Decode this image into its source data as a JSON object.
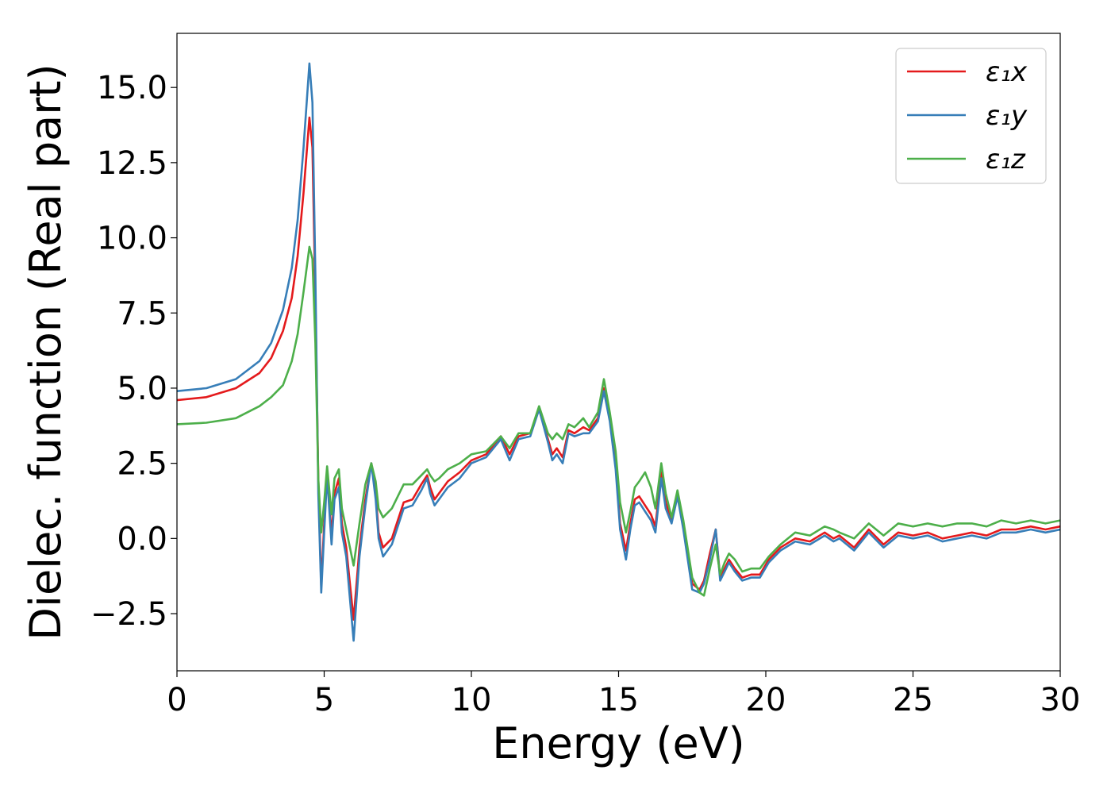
{
  "chart_data": {
    "type": "line",
    "xlabel": "Energy (eV)",
    "ylabel": "Dielec. function (Real part)",
    "xlim": [
      0,
      30
    ],
    "ylim": [
      -4.4,
      16.8
    ],
    "xticks": [
      0,
      5,
      10,
      15,
      20,
      25,
      30
    ],
    "xtick_labels": [
      "0",
      "5",
      "10",
      "15",
      "20",
      "25",
      "30"
    ],
    "yticks": [
      -2.5,
      0.0,
      2.5,
      5.0,
      7.5,
      10.0,
      12.5,
      15.0
    ],
    "ytick_labels": [
      "−2.5",
      "0.0",
      "2.5",
      "5.0",
      "7.5",
      "10.0",
      "12.5",
      "15.0"
    ],
    "grid": false,
    "legend_position": "top-right",
    "series": [
      {
        "name": "ε₁x",
        "color": "#e41a1c",
        "x": [
          0,
          1,
          2,
          2.8,
          3.2,
          3.6,
          3.9,
          4.1,
          4.3,
          4.5,
          4.6,
          4.7,
          4.8,
          4.9,
          5.0,
          5.1,
          5.25,
          5.35,
          5.5,
          5.6,
          5.75,
          6.0,
          6.2,
          6.4,
          6.6,
          6.75,
          6.85,
          7.0,
          7.3,
          7.7,
          8.0,
          8.3,
          8.5,
          8.6,
          8.75,
          8.9,
          9.2,
          9.6,
          10.0,
          10.5,
          11.0,
          11.3,
          11.6,
          12.0,
          12.3,
          12.6,
          12.75,
          12.9,
          13.1,
          13.3,
          13.5,
          13.8,
          14.0,
          14.3,
          14.5,
          14.7,
          14.9,
          15.05,
          15.25,
          15.4,
          15.55,
          15.7,
          15.9,
          16.1,
          16.25,
          16.45,
          16.6,
          16.8,
          17.0,
          17.2,
          17.5,
          17.75,
          17.9,
          18.1,
          18.3,
          18.45,
          18.6,
          18.75,
          18.95,
          19.2,
          19.5,
          19.8,
          20.1,
          20.5,
          21.0,
          21.5,
          22.0,
          22.3,
          22.5,
          23.0,
          23.5,
          24.0,
          24.5,
          25.0,
          25.5,
          26.0,
          26.5,
          27.0,
          27.5,
          28.0,
          28.5,
          29.0,
          29.5,
          30.0
        ],
        "y": [
          4.6,
          4.7,
          5.0,
          5.5,
          6.0,
          6.9,
          8.0,
          9.4,
          11.5,
          14.0,
          13.0,
          8.0,
          2.0,
          -1.6,
          0.5,
          2.2,
          0.1,
          1.5,
          2.0,
          0.5,
          -0.3,
          -2.7,
          -0.3,
          1.3,
          2.5,
          1.5,
          0.2,
          -0.3,
          0.0,
          1.2,
          1.3,
          1.8,
          2.1,
          1.7,
          1.3,
          1.5,
          1.9,
          2.2,
          2.6,
          2.8,
          3.4,
          2.8,
          3.4,
          3.5,
          4.3,
          3.3,
          2.8,
          3.0,
          2.7,
          3.6,
          3.5,
          3.7,
          3.6,
          4.0,
          5.0,
          4.0,
          2.5,
          0.5,
          -0.4,
          0.5,
          1.3,
          1.4,
          1.1,
          0.8,
          0.4,
          2.2,
          1.2,
          0.6,
          1.5,
          0.5,
          -1.5,
          -1.7,
          -1.4,
          -0.5,
          0.3,
          -1.3,
          -1.0,
          -0.7,
          -1.0,
          -1.3,
          -1.2,
          -1.2,
          -0.7,
          -0.3,
          0.0,
          -0.1,
          0.2,
          0.0,
          0.1,
          -0.3,
          0.3,
          -0.2,
          0.2,
          0.1,
          0.2,
          0.0,
          0.1,
          0.2,
          0.1,
          0.3,
          0.3,
          0.4,
          0.3,
          0.4
        ]
      },
      {
        "name": "ε₁y",
        "color": "#377eb8",
        "x": [
          0,
          1,
          2,
          2.8,
          3.2,
          3.6,
          3.9,
          4.1,
          4.3,
          4.5,
          4.6,
          4.7,
          4.8,
          4.9,
          5.0,
          5.1,
          5.25,
          5.35,
          5.5,
          5.6,
          5.75,
          6.0,
          6.2,
          6.4,
          6.6,
          6.75,
          6.85,
          7.0,
          7.3,
          7.7,
          8.0,
          8.3,
          8.5,
          8.6,
          8.75,
          8.9,
          9.2,
          9.6,
          10.0,
          10.5,
          11.0,
          11.3,
          11.6,
          12.0,
          12.3,
          12.6,
          12.75,
          12.9,
          13.1,
          13.3,
          13.5,
          13.8,
          14.0,
          14.3,
          14.5,
          14.7,
          14.9,
          15.05,
          15.25,
          15.4,
          15.55,
          15.7,
          15.9,
          16.1,
          16.25,
          16.45,
          16.6,
          16.8,
          17.0,
          17.2,
          17.5,
          17.75,
          17.9,
          18.1,
          18.3,
          18.45,
          18.6,
          18.75,
          18.95,
          19.2,
          19.5,
          19.8,
          20.1,
          20.5,
          21.0,
          21.5,
          22.0,
          22.3,
          22.5,
          23.0,
          23.5,
          24.0,
          24.5,
          25.0,
          25.5,
          26.0,
          26.5,
          27.0,
          27.5,
          28.0,
          28.5,
          29.0,
          29.5,
          30.0
        ],
        "y": [
          4.9,
          5.0,
          5.3,
          5.9,
          6.5,
          7.6,
          9.0,
          10.6,
          13.0,
          15.8,
          14.5,
          8.8,
          1.5,
          -1.8,
          0.2,
          2.1,
          -0.2,
          1.3,
          1.7,
          0.2,
          -0.6,
          -3.4,
          -0.6,
          1.1,
          2.5,
          1.3,
          0.0,
          -0.6,
          -0.2,
          1.0,
          1.1,
          1.6,
          2.0,
          1.5,
          1.1,
          1.3,
          1.7,
          2.0,
          2.5,
          2.7,
          3.3,
          2.6,
          3.3,
          3.4,
          4.3,
          3.2,
          2.6,
          2.8,
          2.5,
          3.5,
          3.4,
          3.5,
          3.5,
          3.9,
          4.9,
          3.9,
          2.3,
          0.3,
          -0.7,
          0.3,
          1.1,
          1.2,
          0.9,
          0.6,
          0.2,
          2.0,
          1.0,
          0.5,
          1.4,
          0.3,
          -1.7,
          -1.8,
          -1.5,
          -0.7,
          0.3,
          -1.4,
          -1.1,
          -0.8,
          -1.1,
          -1.4,
          -1.3,
          -1.3,
          -0.8,
          -0.4,
          -0.1,
          -0.2,
          0.1,
          -0.1,
          0.0,
          -0.4,
          0.2,
          -0.3,
          0.1,
          0.0,
          0.1,
          -0.1,
          0.0,
          0.1,
          0.0,
          0.2,
          0.2,
          0.3,
          0.2,
          0.3
        ]
      },
      {
        "name": "ε₁z",
        "color": "#4daf4a",
        "x": [
          0,
          1,
          2,
          2.8,
          3.2,
          3.6,
          3.9,
          4.1,
          4.3,
          4.5,
          4.6,
          4.7,
          4.8,
          4.9,
          5.0,
          5.1,
          5.25,
          5.35,
          5.5,
          5.6,
          5.75,
          6.0,
          6.2,
          6.4,
          6.6,
          6.75,
          6.85,
          7.0,
          7.3,
          7.7,
          8.0,
          8.3,
          8.5,
          8.6,
          8.75,
          8.9,
          9.2,
          9.6,
          10.0,
          10.5,
          11.0,
          11.3,
          11.6,
          12.0,
          12.3,
          12.6,
          12.75,
          12.9,
          13.1,
          13.3,
          13.5,
          13.8,
          14.0,
          14.3,
          14.5,
          14.7,
          14.9,
          15.05,
          15.25,
          15.4,
          15.55,
          15.7,
          15.9,
          16.1,
          16.25,
          16.45,
          16.6,
          16.8,
          17.0,
          17.2,
          17.5,
          17.75,
          17.9,
          18.1,
          18.3,
          18.45,
          18.6,
          18.75,
          18.95,
          19.2,
          19.5,
          19.8,
          20.1,
          20.5,
          21.0,
          21.5,
          22.0,
          22.3,
          22.5,
          23.0,
          23.5,
          24.0,
          24.5,
          25.0,
          25.5,
          26.0,
          26.5,
          27.0,
          27.5,
          28.0,
          28.5,
          29.0,
          29.5,
          30.0
        ],
        "y": [
          3.8,
          3.85,
          4.0,
          4.4,
          4.7,
          5.1,
          5.9,
          6.8,
          8.2,
          9.7,
          9.3,
          6.5,
          2.0,
          0.2,
          1.2,
          2.4,
          0.8,
          2.0,
          2.3,
          1.0,
          0.3,
          -0.9,
          0.5,
          1.8,
          2.5,
          1.9,
          1.0,
          0.7,
          1.0,
          1.8,
          1.8,
          2.1,
          2.3,
          2.1,
          1.9,
          2.0,
          2.3,
          2.5,
          2.8,
          2.9,
          3.4,
          3.0,
          3.5,
          3.5,
          4.4,
          3.5,
          3.3,
          3.5,
          3.3,
          3.8,
          3.7,
          4.0,
          3.7,
          4.2,
          5.3,
          4.2,
          2.9,
          1.2,
          0.2,
          0.9,
          1.7,
          1.9,
          2.2,
          1.7,
          1.0,
          2.5,
          1.5,
          0.7,
          1.6,
          0.6,
          -1.3,
          -1.8,
          -1.9,
          -1.0,
          -0.2,
          -1.2,
          -0.8,
          -0.5,
          -0.7,
          -1.1,
          -1.0,
          -1.0,
          -0.6,
          -0.2,
          0.2,
          0.1,
          0.4,
          0.3,
          0.2,
          0.0,
          0.5,
          0.1,
          0.5,
          0.4,
          0.5,
          0.4,
          0.5,
          0.5,
          0.4,
          0.6,
          0.5,
          0.6,
          0.5,
          0.6
        ]
      }
    ]
  }
}
